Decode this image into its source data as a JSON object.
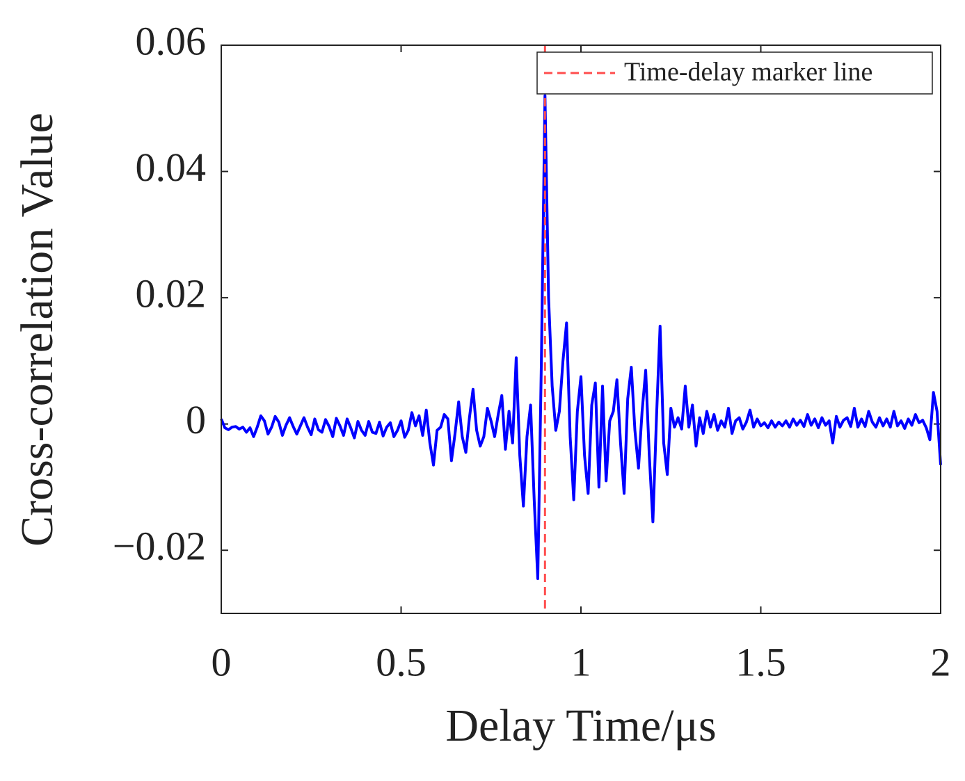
{
  "chart_data": {
    "type": "line",
    "xlabel": "Delay Time/μs",
    "ylabel": "Cross-correlation Value",
    "xlim": [
      0,
      2
    ],
    "xticks": [
      0,
      0.5,
      1,
      1.5,
      2
    ],
    "ylim": [
      -0.03,
      0.06
    ],
    "yticks": [
      {
        "value": -0.02,
        "label": "−0.02"
      },
      0,
      0.02,
      0.04,
      0.06
    ],
    "legend": "upper right",
    "x": [
      0,
      0.01,
      0.02,
      0.03,
      0.04,
      0.05,
      0.06,
      0.07,
      0.08,
      0.09,
      0.1,
      0.11,
      0.12,
      0.13,
      0.14,
      0.15,
      0.16,
      0.17,
      0.18,
      0.19,
      0.2,
      0.21,
      0.22,
      0.23,
      0.24,
      0.25,
      0.26,
      0.27,
      0.28,
      0.29,
      0.3,
      0.31,
      0.32,
      0.33,
      0.34,
      0.35,
      0.36,
      0.37,
      0.38,
      0.39,
      0.4,
      0.41,
      0.42,
      0.43,
      0.44,
      0.45,
      0.46,
      0.47,
      0.48,
      0.49,
      0.5,
      0.51,
      0.52,
      0.53,
      0.54,
      0.55,
      0.56,
      0.57,
      0.58,
      0.59,
      0.6,
      0.61,
      0.62,
      0.63,
      0.64,
      0.65,
      0.66,
      0.67,
      0.68,
      0.69,
      0.7,
      0.71,
      0.72,
      0.73,
      0.74,
      0.75,
      0.76,
      0.77,
      0.78,
      0.79,
      0.8,
      0.81,
      0.82,
      0.83,
      0.84,
      0.85,
      0.86,
      0.87,
      0.88,
      0.89,
      0.9,
      0.91,
      0.92,
      0.93,
      0.94,
      0.95,
      0.96,
      0.97,
      0.98,
      0.99,
      1,
      1.01,
      1.02,
      1.03,
      1.04,
      1.05,
      1.06,
      1.07,
      1.08,
      1.09,
      1.1,
      1.11,
      1.12,
      1.13,
      1.14,
      1.15,
      1.16,
      1.17,
      1.18,
      1.19,
      1.2,
      1.21,
      1.22,
      1.23,
      1.24,
      1.25,
      1.26,
      1.27,
      1.28,
      1.29,
      1.3,
      1.31,
      1.32,
      1.33,
      1.34,
      1.35,
      1.36,
      1.37,
      1.38,
      1.39,
      1.4,
      1.41,
      1.42,
      1.43,
      1.44,
      1.45,
      1.46,
      1.47,
      1.48,
      1.49,
      1.5,
      1.51,
      1.52,
      1.53,
      1.54,
      1.55,
      1.56,
      1.57,
      1.58,
      1.59,
      1.6,
      1.61,
      1.62,
      1.63,
      1.64,
      1.65,
      1.66,
      1.67,
      1.68,
      1.69,
      1.7,
      1.71,
      1.72,
      1.73,
      1.74,
      1.75,
      1.76,
      1.77,
      1.78,
      1.79,
      1.8,
      1.81,
      1.82,
      1.83,
      1.84,
      1.85,
      1.86,
      1.87,
      1.88,
      1.89,
      1.9,
      1.91,
      1.92,
      1.93,
      1.94,
      1.95,
      1.96,
      1.97,
      1.98,
      1.99,
      2
    ],
    "series": [
      {
        "color": "#0000ff",
        "values": [
          0.0008,
          -0.0006,
          -0.0009,
          -0.0005,
          -0.0004,
          -0.0008,
          -0.0005,
          -0.0013,
          -0.0006,
          -0.002,
          -0.0005,
          0.0013,
          0.0005,
          -0.0016,
          -0.0005,
          0.0012,
          0.0003,
          -0.0018,
          -0.0002,
          0.001,
          -0.0004,
          -0.0016,
          -0.0003,
          0.001,
          -0.0005,
          -0.0017,
          0.0008,
          -0.0009,
          -0.0013,
          0.0007,
          -0.0004,
          -0.002,
          0.0009,
          -0.0003,
          -0.0018,
          0.0008,
          -0.0006,
          -0.0022,
          0.0004,
          -0.001,
          -0.0018,
          0.0004,
          -0.0013,
          -0.0015,
          0.0003,
          -0.0019,
          -0.0005,
          0.0002,
          -0.002,
          -0.001,
          0.0005,
          -0.0021,
          -0.001,
          0.0018,
          -0.0003,
          0.0013,
          -0.0018,
          0.0022,
          -0.003,
          -0.0065,
          -0.001,
          -0.0005,
          0.0015,
          0.0008,
          -0.0058,
          -0.0015,
          0.0035,
          -0.002,
          -0.0045,
          0.001,
          0.0055,
          -0.001,
          -0.0035,
          -0.002,
          0.0025,
          0.0005,
          -0.002,
          0.0015,
          0.0045,
          -0.004,
          0.002,
          -0.003,
          0.0105,
          -0.005,
          -0.013,
          -0.002,
          0.003,
          -0.012,
          -0.0245,
          0.01,
          0.052,
          0.02,
          0.006,
          -0.001,
          0.002,
          0.01,
          0.016,
          -0.002,
          -0.012,
          0.002,
          0.0075,
          -0.005,
          -0.011,
          0.003,
          0.0065,
          -0.01,
          0.006,
          -0.009,
          0.0005,
          0.002,
          0.007,
          -0.003,
          -0.011,
          0.004,
          0.009,
          -0.001,
          -0.007,
          0.002,
          0.0085,
          -0.005,
          -0.0155,
          0.001,
          0.0155,
          -0.003,
          -0.008,
          0.0025,
          -0.0005,
          0.001,
          -0.0008,
          0.006,
          -0.0005,
          0.003,
          -0.0035,
          0.001,
          -0.0015,
          0.002,
          -0.0005,
          0.0015,
          -0.001,
          0.0005,
          -0.0005,
          0.0025,
          -0.0015,
          0.0005,
          0.001,
          -0.0008,
          0.0003,
          0.0022,
          -0.0005,
          0.0008,
          -0.0003,
          0.0002,
          -0.0006,
          0.0005,
          -0.0005,
          0.0003,
          -0.0003,
          0.0005,
          -0.0005,
          0.0008,
          -0.0002,
          0.0006,
          -0.0004,
          0.0015,
          -0.0002,
          0.0008,
          -0.0006,
          0.001,
          -0.0002,
          0.0005,
          -0.003,
          0.0012,
          -0.0005,
          0.0006,
          0.001,
          -0.0004,
          0.0025,
          -0.0005,
          0.0008,
          -0.0004,
          0.002,
          0.0003,
          -0.0005,
          0.001,
          -0.0003,
          0.0008,
          -0.0005,
          0.002,
          -0.0003,
          0.0005,
          -0.0007,
          0.0008,
          -0.0002,
          0.0015,
          0.0002,
          0.0006,
          -0.0006,
          -0.0025,
          0.005,
          0.002,
          -0.0065
        ]
      }
    ],
    "marker": {
      "name": "Time-delay marker line",
      "x": 0.9,
      "color": "#ff4d4d"
    }
  }
}
